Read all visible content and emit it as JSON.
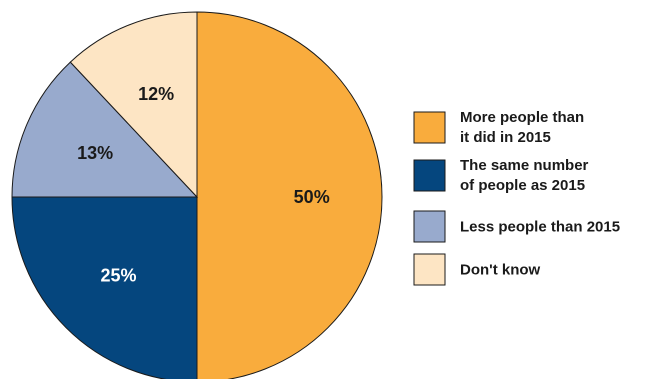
{
  "chart_data": {
    "type": "pie",
    "title": "",
    "slices": [
      {
        "label": "More people than it did in 2015",
        "label_lines": [
          "More people than",
          "it did in 2015"
        ],
        "value": 50,
        "display": "50%",
        "color": "#F9AC3D",
        "text_color": "#1a1a1a"
      },
      {
        "label": "The same number of people as 2015",
        "label_lines": [
          "The same number",
          "of people as 2015"
        ],
        "value": 25,
        "display": "25%",
        "color": "#05467E",
        "text_color": "#ffffff"
      },
      {
        "label": "Less people than 2015",
        "label_lines": [
          "Less people than 2015"
        ],
        "value": 13,
        "display": "13%",
        "color": "#98AACD",
        "text_color": "#1a1a1a"
      },
      {
        "label": "Don't know",
        "label_lines": [
          "Don't know"
        ],
        "value": 12,
        "display": "12%",
        "color": "#FDE5C4",
        "text_color": "#1a1a1a"
      }
    ],
    "legend_position": "right"
  }
}
